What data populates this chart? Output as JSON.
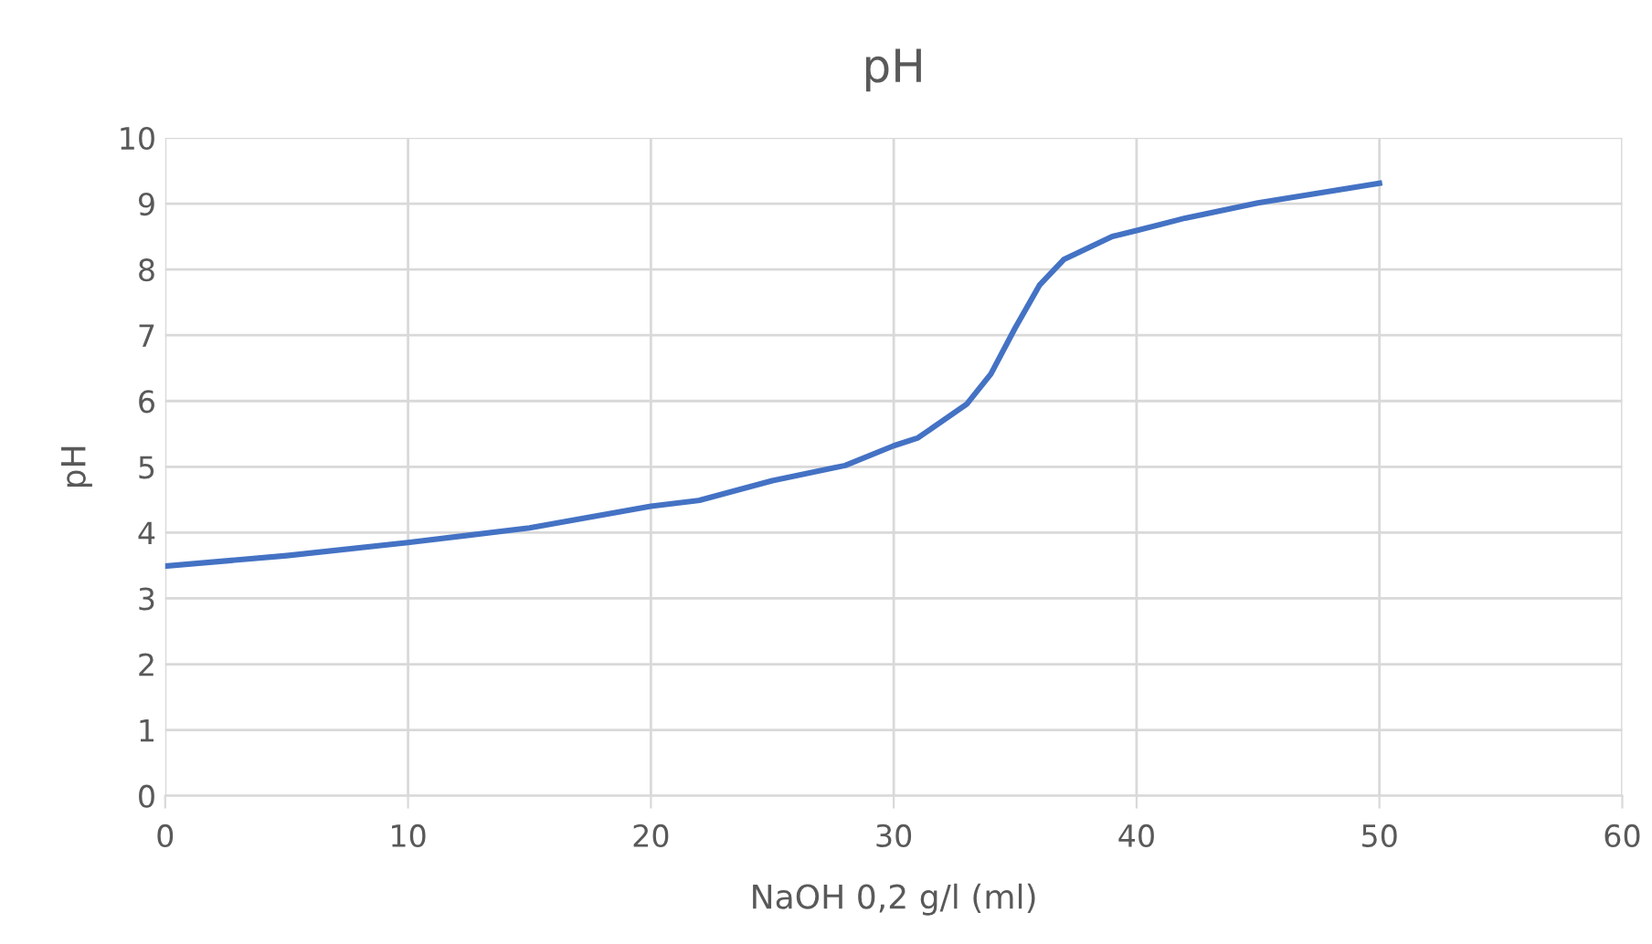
{
  "chart_data": {
    "type": "line",
    "title": "pH",
    "xlabel": "NaOH 0,2 g/l (ml)",
    "ylabel": "pH",
    "x": [
      0,
      5,
      10,
      15,
      20,
      22,
      25,
      28,
      30,
      31,
      33,
      34,
      35,
      36,
      37,
      39,
      40,
      42,
      45,
      50
    ],
    "series": [
      {
        "color": "#4472c4",
        "values": [
          3.49,
          3.65,
          3.85,
          4.07,
          4.4,
          4.49,
          4.79,
          5.02,
          5.32,
          5.44,
          5.95,
          6.41,
          7.11,
          7.76,
          8.15,
          8.5,
          8.59,
          8.78,
          9.01,
          9.31
        ]
      }
    ],
    "xlim": [
      0,
      60
    ],
    "xticks": [
      0,
      10,
      20,
      30,
      40,
      50,
      60
    ],
    "ylim": [
      0,
      10
    ],
    "yticks": [
      0,
      1,
      2,
      3,
      4,
      5,
      6,
      7,
      8,
      9,
      10
    ],
    "grid": true,
    "marker": "none",
    "line_style": "solid",
    "legend": false
  }
}
